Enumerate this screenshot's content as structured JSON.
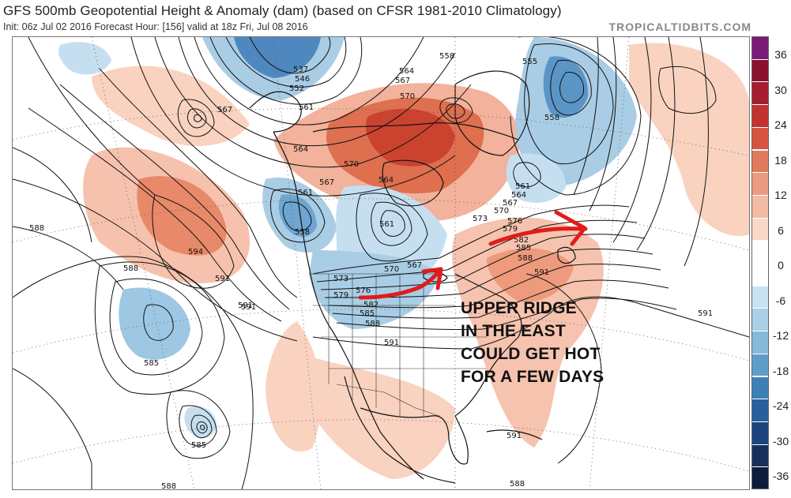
{
  "header": {
    "title": "GFS 500mb Geopotential Height & Anomaly (dam) (based on CFSR 1981-2010 Climatology)",
    "subtitle": "Init: 06z Jul 02 2016   Forecast Hour: [156]   valid at 18z Fri, Jul 08 2016",
    "brand": "TROPICALTIDBITS.COM"
  },
  "colorbar": {
    "labels": [
      "36",
      "30",
      "24",
      "18",
      "12",
      "6",
      "0",
      "-6",
      "-12",
      "-18",
      "-24",
      "-30",
      "-36"
    ],
    "colors": [
      "#7b1a78",
      "#8a1030",
      "#a51d2e",
      "#c2332f",
      "#d5553f",
      "#e17a5c",
      "#eb9c80",
      "#f3bba3",
      "#f9d8c7",
      "#ffffff",
      "#ffffff",
      "#c9e2f0",
      "#a9d0e6",
      "#87b9da",
      "#5f9ecb",
      "#3d80b7",
      "#2a5f9e",
      "#1e447d",
      "#16305d",
      "#0d1c3b"
    ]
  },
  "contour_labels": [
    {
      "text": "537"
    },
    {
      "text": "546"
    },
    {
      "text": "552"
    },
    {
      "text": "561"
    },
    {
      "text": "558"
    },
    {
      "text": "555"
    },
    {
      "text": "564"
    },
    {
      "text": "567"
    },
    {
      "text": "570"
    },
    {
      "text": "558"
    },
    {
      "text": "567"
    },
    {
      "text": "564"
    },
    {
      "text": "570"
    },
    {
      "text": "567"
    },
    {
      "text": "561"
    },
    {
      "text": "564"
    },
    {
      "text": "561"
    },
    {
      "text": "558"
    },
    {
      "text": "588"
    },
    {
      "text": "594"
    },
    {
      "text": "591"
    },
    {
      "text": "591"
    },
    {
      "text": "588"
    },
    {
      "text": "585"
    },
    {
      "text": "585"
    },
    {
      "text": "588"
    },
    {
      "text": "573"
    },
    {
      "text": "576"
    },
    {
      "text": "579"
    },
    {
      "text": "582"
    },
    {
      "text": "585"
    },
    {
      "text": "588"
    },
    {
      "text": "591"
    },
    {
      "text": "570"
    },
    {
      "text": "567"
    },
    {
      "text": "561"
    },
    {
      "text": "564"
    },
    {
      "text": "567"
    },
    {
      "text": "570"
    },
    {
      "text": "573"
    },
    {
      "text": "576"
    },
    {
      "text": "579"
    },
    {
      "text": "582"
    },
    {
      "text": "585"
    },
    {
      "text": "588"
    },
    {
      "text": "591"
    },
    {
      "text": "591"
    },
    {
      "text": "591"
    },
    {
      "text": "591"
    },
    {
      "text": "588"
    }
  ],
  "annotation": {
    "lines": [
      "UPPER RIDGE",
      "IN THE EAST",
      "COULD GET HOT",
      "FOR A FEW DAYS"
    ],
    "color": "#111111",
    "arrow_color": "#e21b1b"
  },
  "anomaly_colors": {
    "warm_light": "#f9d3c0",
    "warm_mid": "#ef9f82",
    "warm_strong": "#d9593f",
    "cool_light": "#cfe3f1",
    "cool_mid": "#9ec7e3",
    "cool_strong": "#5a95c6",
    "cool_deep": "#2f6aa6"
  }
}
